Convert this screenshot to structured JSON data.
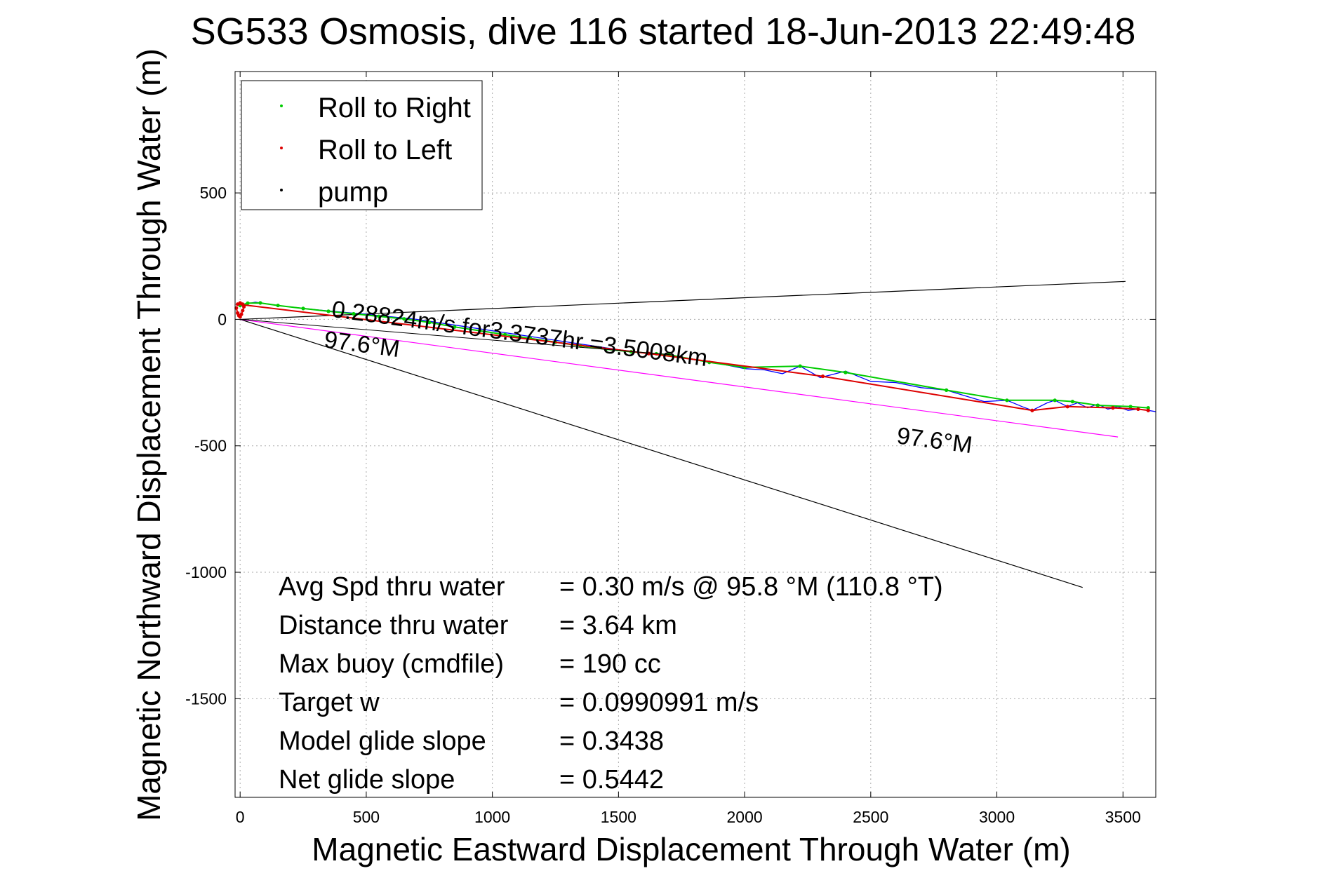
{
  "chart_data": {
    "type": "line",
    "title": "SG533 Osmosis, dive 116 started 18-Jun-2013 22:49:48",
    "xlabel": "Magnetic Eastward Displacement Through Water (m)",
    "ylabel": "Magnetic Northward Displacement Through Water (m)",
    "xlim": [
      -20,
      3630
    ],
    "ylim": [
      -1890,
      980
    ],
    "xticks": [
      0,
      500,
      1000,
      1500,
      2000,
      2500,
      3000,
      3500
    ],
    "yticks": [
      500,
      0,
      -500,
      -1000,
      -1500
    ],
    "grid": true,
    "legend": {
      "placement": "top-left",
      "entries": [
        {
          "label": "Roll to Right",
          "color": "#00cc00"
        },
        {
          "label": "Roll to Left",
          "color": "#dd0000"
        },
        {
          "label": "pump",
          "color": "#000000"
        }
      ]
    },
    "series": [
      {
        "role": "track",
        "color": "#0000ff",
        "x": [
          0,
          20,
          60,
          150,
          300,
          500,
          700,
          900,
          1100,
          1300,
          1500,
          1620,
          1700,
          1800,
          1900,
          2000,
          2080,
          2150,
          2220,
          2300,
          2400,
          2500,
          2600,
          2700,
          2800,
          2900,
          2950,
          3040,
          3100,
          3140,
          3200,
          3230,
          3280,
          3320,
          3360,
          3400,
          3440,
          3480,
          3520,
          3560,
          3600,
          3630
        ],
        "y": [
          50,
          60,
          68,
          55,
          38,
          20,
          0,
          -30,
          -60,
          -90,
          -120,
          -135,
          -140,
          -160,
          -175,
          -195,
          -200,
          -215,
          -185,
          -230,
          -205,
          -245,
          -250,
          -270,
          -280,
          -310,
          -325,
          -320,
          -345,
          -360,
          -330,
          -320,
          -345,
          -330,
          -350,
          -335,
          -355,
          -345,
          -360,
          -355,
          -360,
          -365
        ]
      },
      {
        "role": "Roll to Right",
        "color": "#00cc00",
        "x": [
          0,
          30,
          80,
          150,
          250,
          350,
          450,
          550,
          650,
          750,
          850,
          950,
          1050,
          1150,
          1250,
          1350,
          1450,
          1550,
          1650,
          1700,
          1860,
          2000,
          2220,
          2400,
          2800,
          3040,
          3230,
          3300,
          3400,
          3530,
          3600
        ],
        "y": [
          55,
          64,
          65,
          55,
          43,
          32,
          22,
          12,
          2,
          -12,
          -30,
          -45,
          -60,
          -75,
          -90,
          -105,
          -118,
          -128,
          -136,
          -140,
          -170,
          -190,
          -185,
          -210,
          -280,
          -320,
          -320,
          -325,
          -340,
          -345,
          -350
        ]
      },
      {
        "role": "Roll to Left",
        "color": "#dd0000",
        "x": [
          -15,
          -10,
          -5,
          0,
          5,
          10,
          15,
          10,
          0,
          -10,
          1620,
          2310,
          3140,
          3280,
          3460,
          3560,
          3600
        ],
        "y": [
          45,
          25,
          15,
          10,
          20,
          35,
          50,
          60,
          65,
          60,
          -135,
          -225,
          -360,
          -345,
          -350,
          -355,
          -360
        ]
      },
      {
        "role": "pump",
        "color": "#000000",
        "x": [
          0,
          1710
        ],
        "y": [
          0,
          -140
        ]
      }
    ],
    "reference_lines": [
      {
        "color": "#000000",
        "x": [
          0,
          3510
        ],
        "y": [
          0,
          150
        ]
      },
      {
        "color": "#000000",
        "x": [
          0,
          3340
        ],
        "y": [
          0,
          -1060
        ]
      },
      {
        "color": "#ff00ff",
        "x": [
          0,
          3480
        ],
        "y": [
          0,
          -465
        ]
      }
    ],
    "annotations": [
      {
        "text": "0.28824m/s for3.3737hr =3.5008km",
        "x": 360,
        "y": 10,
        "rotation": 7.5
      },
      {
        "text": "97.6°M",
        "x": 330,
        "y": -110,
        "rotation": 7.5
      },
      {
        "text": "97.6°M",
        "x": 2600,
        "y": -490,
        "rotation": 7.5
      }
    ],
    "stats": [
      {
        "label": "Avg Spd thru water",
        "value": "=  0.30 m/s @  95.8 °M (110.8 °T)"
      },
      {
        "label": "Distance thru water",
        "value": "=  3.64 km"
      },
      {
        "label": "Max buoy (cmdfile)",
        "value": "= 190 cc"
      },
      {
        "label": "Target w",
        "value": "= 0.0990991 m/s"
      },
      {
        "label": "Model glide slope",
        "value": "= 0.3438"
      },
      {
        "label": "Net glide slope",
        "value": "= 0.5442"
      }
    ]
  }
}
